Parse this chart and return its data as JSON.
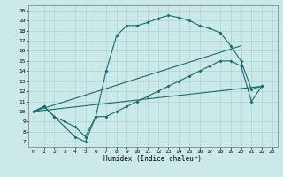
{
  "xlabel": "Humidex (Indice chaleur)",
  "bg_color": "#cce9e9",
  "grid_color": "#aad4d4",
  "line_color": "#1a6b6b",
  "xlim": [
    -0.5,
    23.5
  ],
  "ylim": [
    6.5,
    20.5
  ],
  "xticks": [
    0,
    1,
    2,
    3,
    4,
    5,
    6,
    7,
    8,
    9,
    10,
    11,
    12,
    13,
    14,
    15,
    16,
    17,
    18,
    19,
    20,
    21,
    22,
    23
  ],
  "yticks": [
    7,
    8,
    9,
    10,
    11,
    12,
    13,
    14,
    15,
    16,
    17,
    18,
    19,
    20
  ],
  "line1_x": [
    0,
    1,
    2,
    3,
    4,
    5,
    6,
    7,
    8,
    9,
    10,
    11,
    12,
    13,
    14,
    15,
    16,
    17,
    18,
    19,
    20,
    21,
    22
  ],
  "line1_y": [
    10.0,
    10.5,
    9.5,
    8.5,
    7.5,
    7.0,
    9.5,
    14.0,
    17.5,
    18.5,
    18.5,
    18.8,
    19.2,
    19.5,
    19.3,
    19.0,
    18.5,
    18.2,
    17.8,
    16.5,
    15.0,
    12.2,
    12.5
  ],
  "line2_x": [
    0,
    1,
    2,
    3,
    4,
    5,
    6,
    7,
    8,
    9,
    10,
    11,
    12,
    13,
    14,
    15,
    16,
    17,
    18,
    19,
    20,
    21,
    22
  ],
  "line2_y": [
    10.0,
    10.5,
    9.5,
    9.0,
    8.5,
    7.5,
    9.5,
    9.5,
    10.0,
    10.5,
    11.0,
    11.5,
    12.0,
    12.5,
    13.0,
    13.5,
    14.0,
    14.5,
    15.0,
    15.0,
    14.5,
    11.0,
    12.5
  ],
  "line3_x": [
    0,
    22
  ],
  "line3_y": [
    10.0,
    12.5
  ],
  "line4_x": [
    0,
    20
  ],
  "line4_y": [
    10.0,
    16.5
  ]
}
